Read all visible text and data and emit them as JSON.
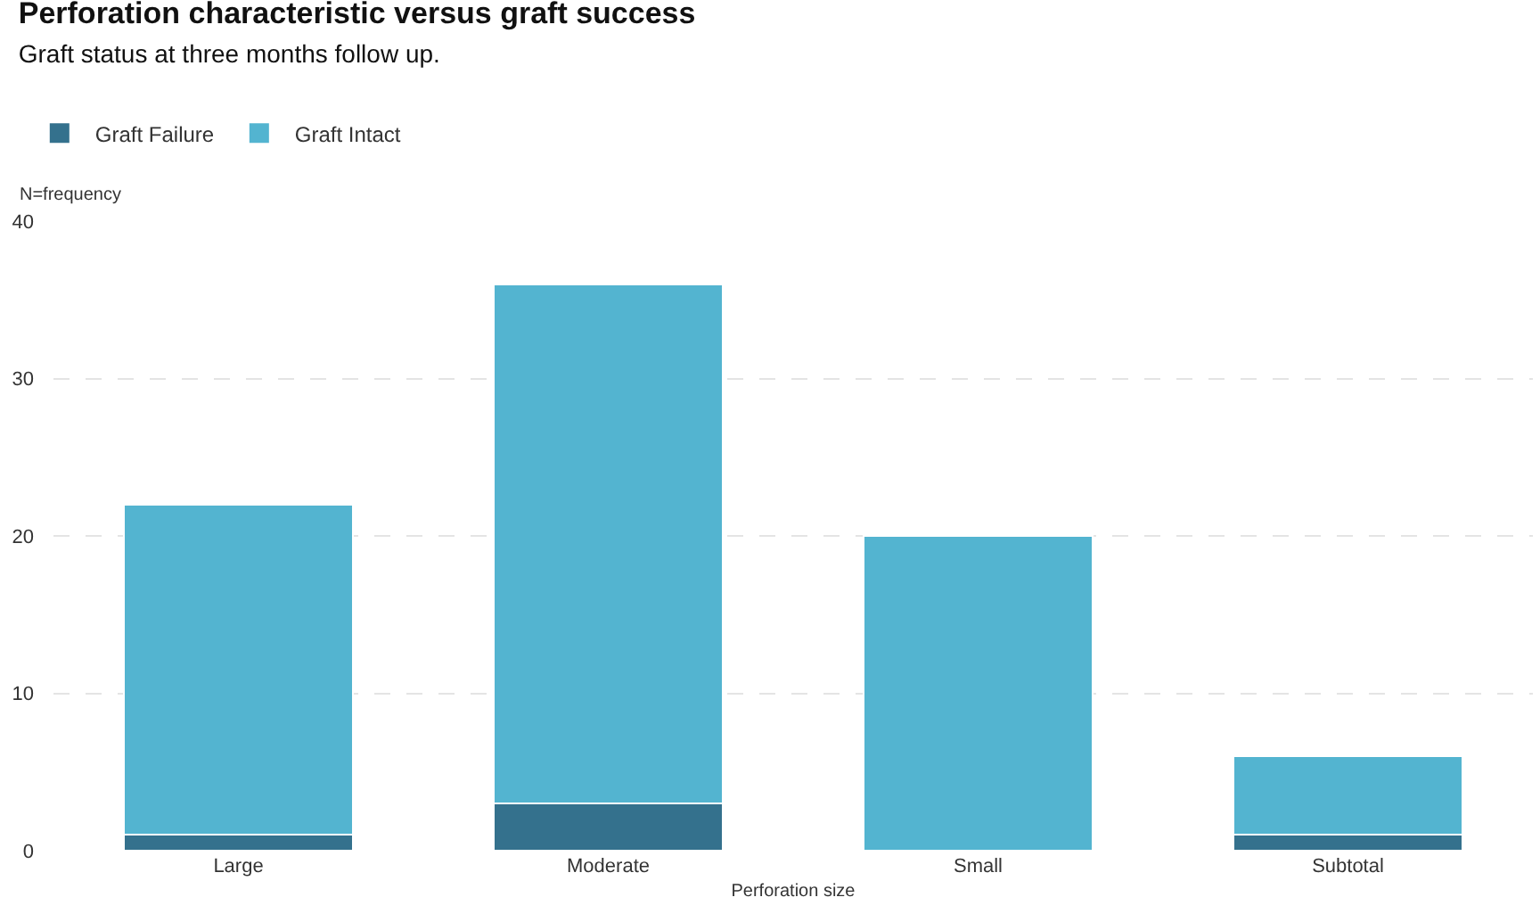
{
  "chart_data": {
    "type": "bar",
    "title": "Perforation characteristic versus graft success",
    "subtitle": "Graft status at three months follow up.",
    "xlabel": "Perforation size",
    "ylabel": "N=frequency",
    "categories": [
      "Large",
      "Moderate",
      "Small",
      "Subtotal"
    ],
    "stacked": true,
    "series": [
      {
        "name": "Graft Failure",
        "color": "#34718d",
        "values": [
          1,
          3,
          0,
          1
        ]
      },
      {
        "name": "Graft Intact",
        "color": "#53b4d0",
        "values": [
          21,
          33,
          20,
          5
        ]
      }
    ],
    "ylim": [
      0,
      40
    ],
    "yticks": [
      0,
      10,
      20,
      30,
      40
    ],
    "grid": "y",
    "legend": "top left"
  }
}
